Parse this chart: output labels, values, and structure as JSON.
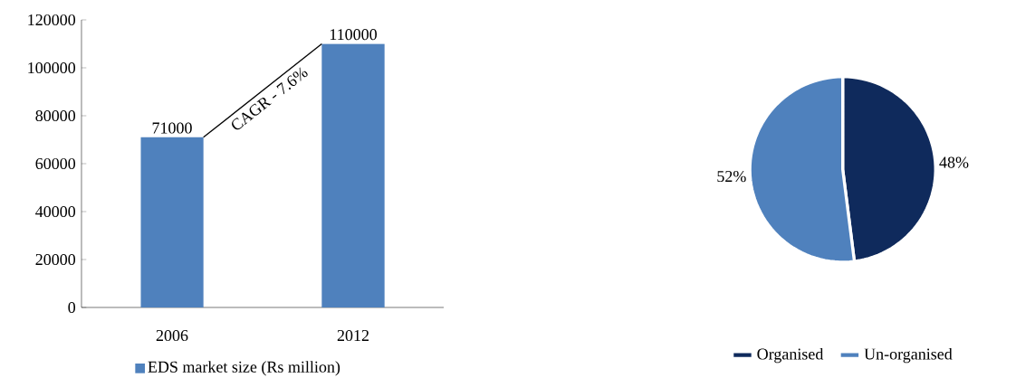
{
  "chart_data": [
    {
      "type": "bar",
      "categories": [
        "2006",
        "2012"
      ],
      "series": [
        {
          "name": "EDS market size (Rs million)",
          "color": "#4f81bd",
          "values": [
            71000,
            110000
          ]
        }
      ],
      "ylim": [
        0,
        120000
      ],
      "yticks": [
        0,
        20000,
        40000,
        60000,
        80000,
        100000,
        120000
      ],
      "data_labels": true,
      "legend": "bottom",
      "annotations": [
        "CAGR - 7.6%"
      ]
    },
    {
      "type": "pie",
      "categories": [
        "Organised",
        "Un-organised"
      ],
      "values": [
        48,
        52
      ],
      "colors": [
        "#0f2a5c",
        "#4f81bd"
      ],
      "value_labels": [
        "48%",
        "52%"
      ],
      "legend": "bottom"
    }
  ]
}
